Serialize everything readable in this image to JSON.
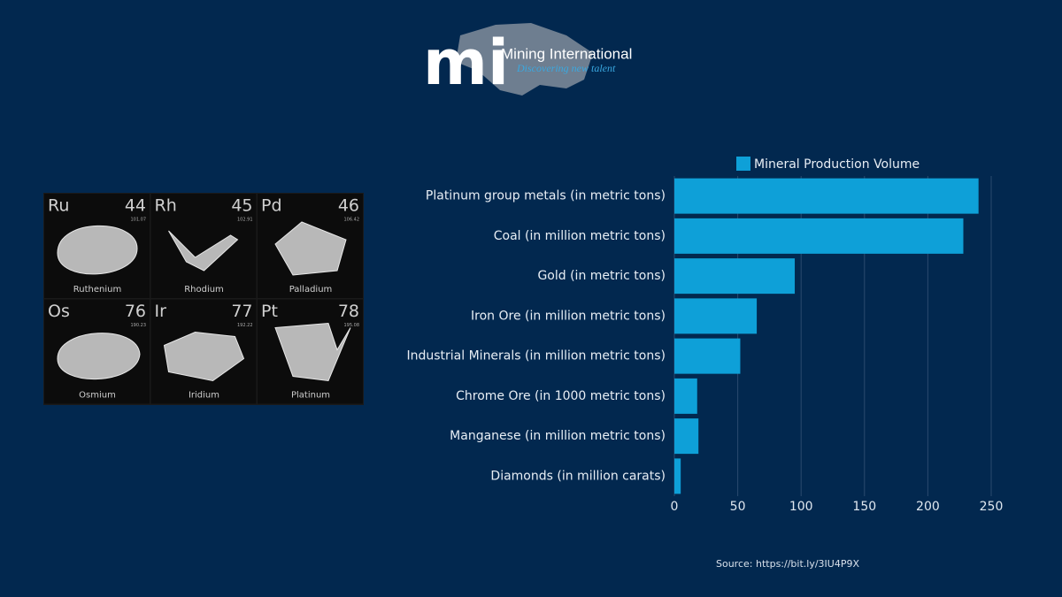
{
  "logo": {
    "mark": "mi",
    "name": "Mining International",
    "tagline": "Discovering new talent"
  },
  "elements": [
    {
      "symbol": "Ru",
      "number": "44",
      "mass": "101.07",
      "name": "Ruthenium"
    },
    {
      "symbol": "Rh",
      "number": "45",
      "mass": "102.91",
      "name": "Rhodium"
    },
    {
      "symbol": "Pd",
      "number": "46",
      "mass": "106.42",
      "name": "Palladium"
    },
    {
      "symbol": "Os",
      "number": "76",
      "mass": "190.23",
      "name": "Osmium"
    },
    {
      "symbol": "Ir",
      "number": "77",
      "mass": "192.22",
      "name": "Iridium"
    },
    {
      "symbol": "Pt",
      "number": "78",
      "mass": "195.08",
      "name": "Platinum"
    }
  ],
  "chart_data": {
    "type": "bar",
    "orientation": "horizontal",
    "categories": [
      "Platinum group metals (in metric tons)",
      "Coal (in million metric tons)",
      "Gold (in metric tons)",
      "Iron Ore (in million metric tons)",
      "Industrial Minerals (in million metric tons)",
      "Chrome Ore (in 1000 metric tons)",
      "Manganese (in million metric tons)",
      "Diamonds (in million carats)"
    ],
    "series": [
      {
        "name": "Mineral Production Volume",
        "color": "#0ea0d8",
        "values": [
          240,
          228,
          95,
          65,
          52,
          18,
          19,
          5
        ]
      }
    ],
    "xlim": [
      0,
      250
    ],
    "xticks": [
      0,
      50,
      100,
      150,
      200,
      250
    ],
    "grid": true,
    "legend": "top",
    "source": "Source: https://bit.ly/3IU4P9X"
  }
}
